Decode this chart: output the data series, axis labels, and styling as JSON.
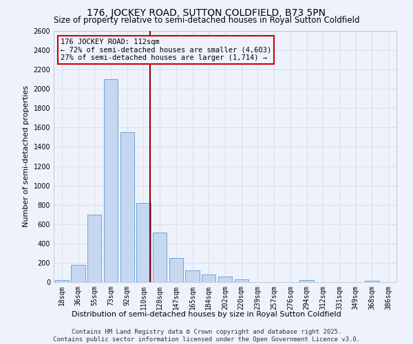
{
  "title": "176, JOCKEY ROAD, SUTTON COLDFIELD, B73 5PN",
  "subtitle": "Size of property relative to semi-detached houses in Royal Sutton Coldfield",
  "xlabel": "Distribution of semi-detached houses by size in Royal Sutton Coldfield",
  "ylabel": "Number of semi-detached properties",
  "categories": [
    "18sqm",
    "36sqm",
    "55sqm",
    "73sqm",
    "92sqm",
    "110sqm",
    "128sqm",
    "147sqm",
    "165sqm",
    "184sqm",
    "202sqm",
    "220sqm",
    "239sqm",
    "257sqm",
    "276sqm",
    "294sqm",
    "312sqm",
    "331sqm",
    "349sqm",
    "368sqm",
    "386sqm"
  ],
  "values": [
    20,
    180,
    700,
    2100,
    1550,
    820,
    510,
    250,
    120,
    75,
    55,
    30,
    0,
    0,
    0,
    20,
    0,
    0,
    0,
    15,
    0
  ],
  "bar_color": "#c5d8f0",
  "bar_edge_color": "#5b9bd5",
  "pct_smaller": "72%",
  "n_smaller": "4,603",
  "pct_larger": "27%",
  "n_larger": "1,714",
  "vline_color": "#8b0000",
  "box_color": "#cc0000",
  "ylim": [
    0,
    2600
  ],
  "yticks": [
    0,
    200,
    400,
    600,
    800,
    1000,
    1200,
    1400,
    1600,
    1800,
    2000,
    2200,
    2400,
    2600
  ],
  "footer": "Contains HM Land Registry data © Crown copyright and database right 2025.\nContains public sector information licensed under the Open Government Licence v3.0.",
  "background_color": "#eef2fb",
  "grid_color": "#d8e0f0",
  "title_fontsize": 10,
  "subtitle_fontsize": 8.5,
  "axis_label_fontsize": 8,
  "tick_fontsize": 7,
  "footer_fontsize": 6.5,
  "annotation_fontsize": 7.5,
  "vline_x": 5.42
}
